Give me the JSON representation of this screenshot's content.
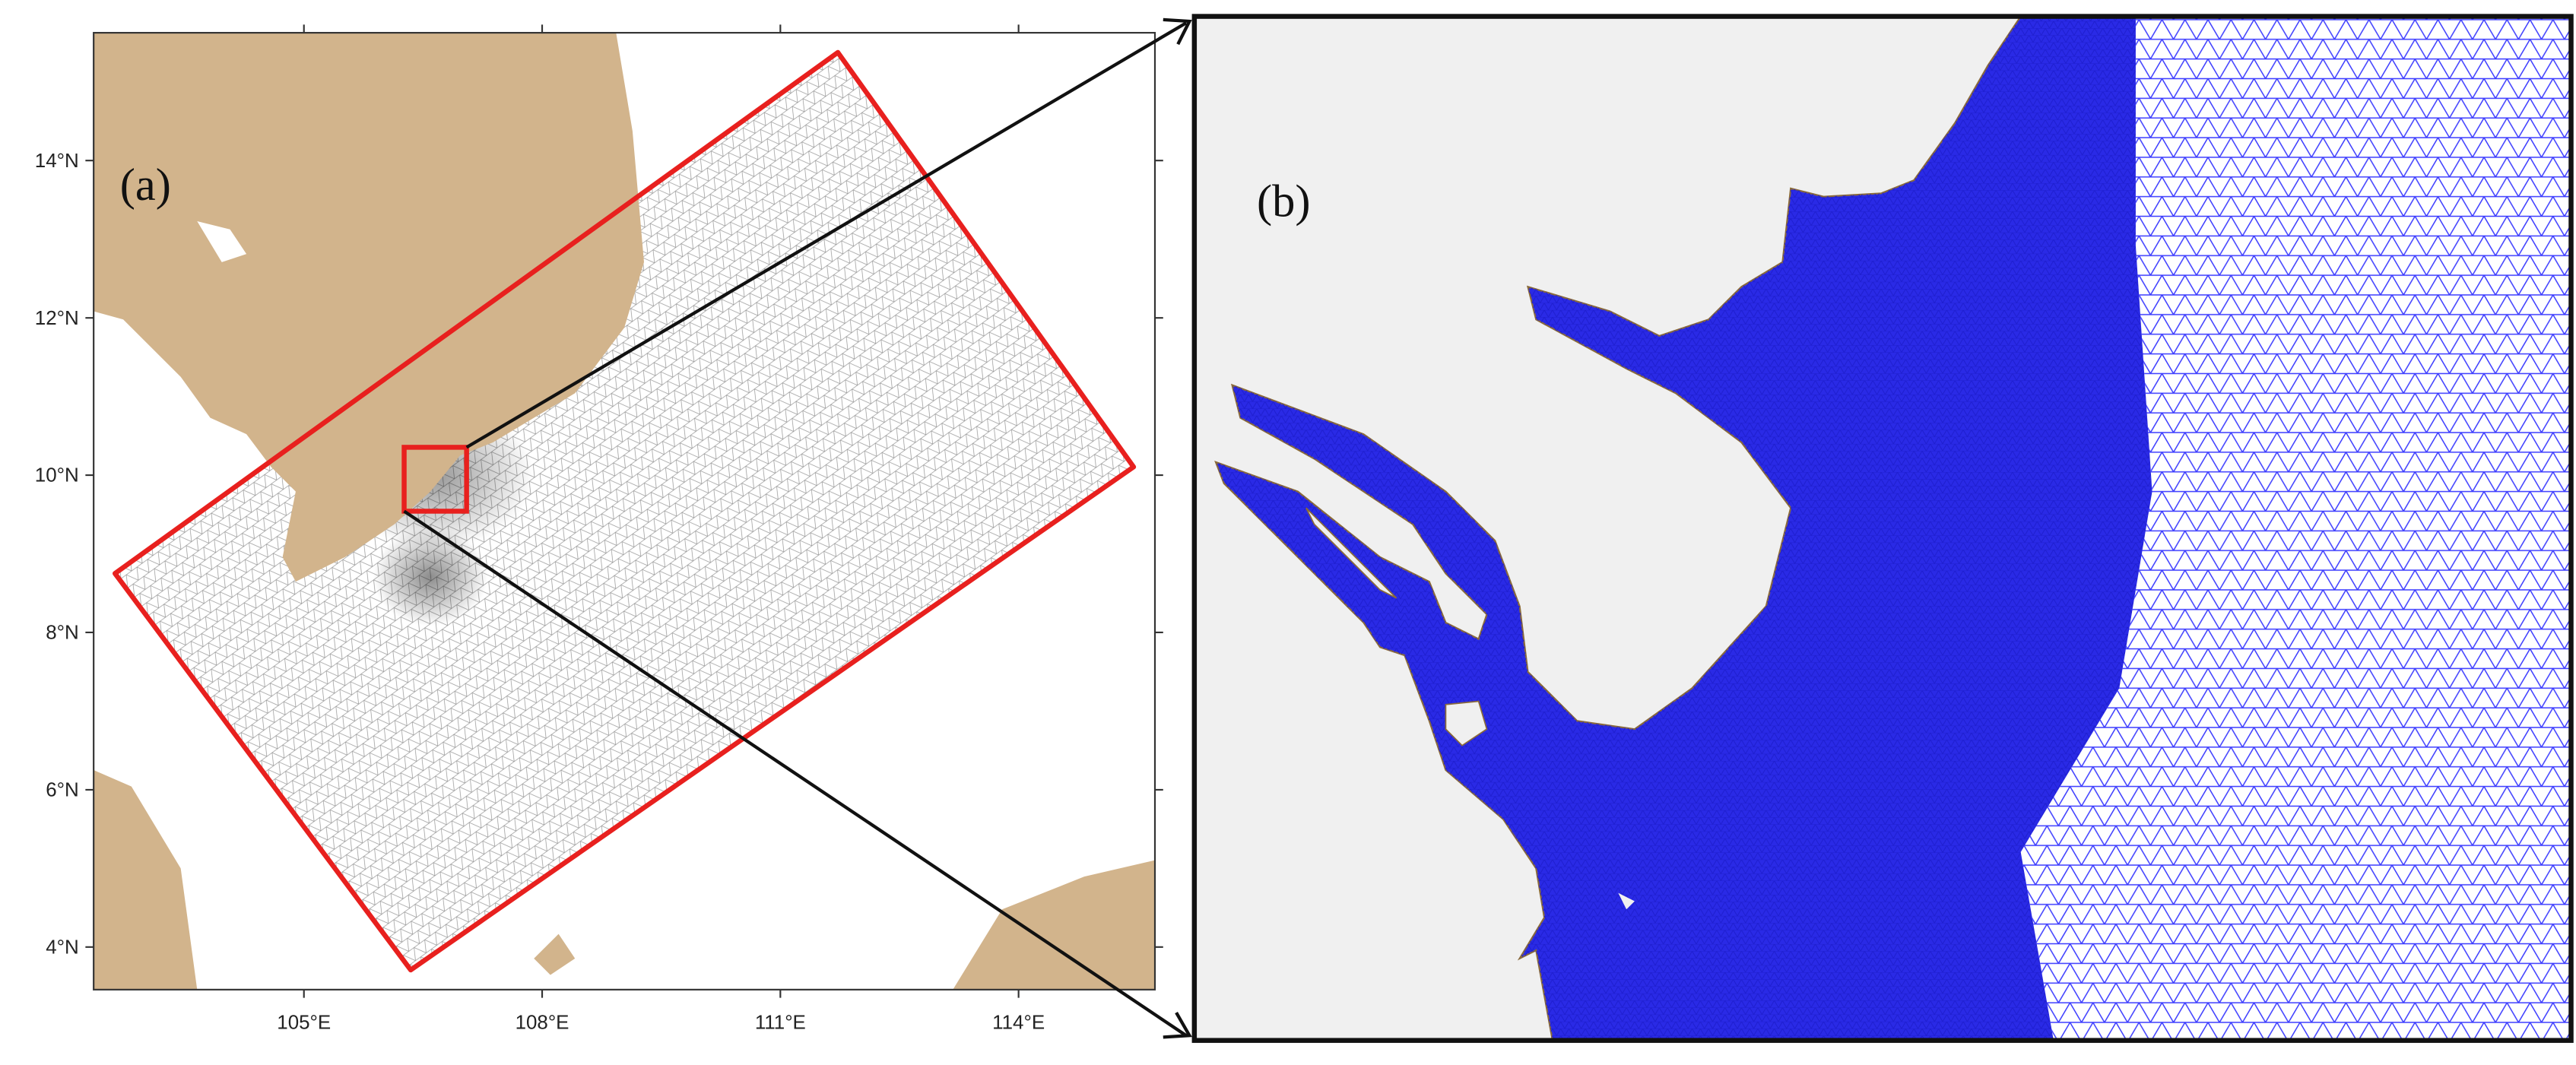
{
  "panel_a": {
    "label": "(a)",
    "x_ticks": [
      "105°E",
      "108°E",
      "111°E",
      "114°E"
    ],
    "y_ticks": [
      "14°N",
      "12°N",
      "10°N",
      "8°N",
      "6°N",
      "4°N"
    ]
  },
  "panel_b": {
    "label": "(b)"
  }
}
